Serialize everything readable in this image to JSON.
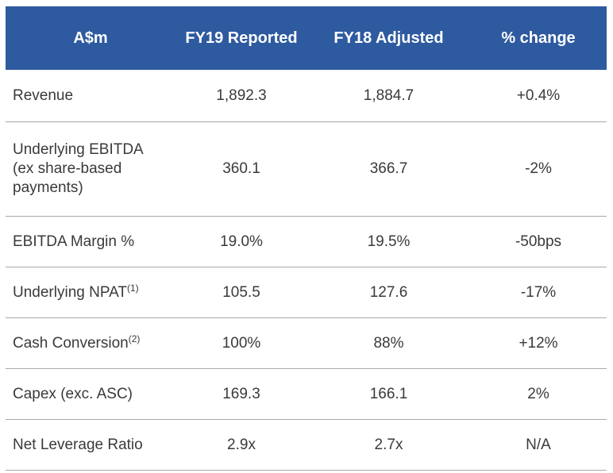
{
  "header": {
    "col1": "A$m",
    "col2": "FY19 Reported",
    "col3": "FY18 Adjusted",
    "col4": "% change"
  },
  "rows": [
    {
      "label": "Revenue",
      "fy19": "1,892.3",
      "fy18": "1,884.7",
      "change": "+0.4%"
    },
    {
      "label_lines": [
        "Underlying EBITDA",
        "(ex share-based",
        "payments)"
      ],
      "fy19": "360.1",
      "fy18": "366.7",
      "change": "-2%"
    },
    {
      "label": "EBITDA Margin %",
      "fy19": "19.0%",
      "fy18": "19.5%",
      "change": "-50bps"
    },
    {
      "label": "Underlying NPAT",
      "note": "(1)",
      "fy19": "105.5",
      "fy18": "127.6",
      "change": "-17%"
    },
    {
      "label": "Cash Conversion",
      "note": "(2)",
      "fy19": "100%",
      "fy18": "88%",
      "change": "+12%"
    },
    {
      "label": "Capex (exc. ASC)",
      "fy19": "169.3",
      "fy18": "166.1",
      "change": "2%"
    },
    {
      "label": "Net Leverage Ratio",
      "fy19": "2.9x",
      "fy18": "2.7x",
      "change": "N/A"
    }
  ],
  "colors": {
    "header_bg": "#2e5aa0",
    "header_text": "#ffffff",
    "body_text": "#3a3a3a",
    "row_divider": "#a9a9a9"
  }
}
